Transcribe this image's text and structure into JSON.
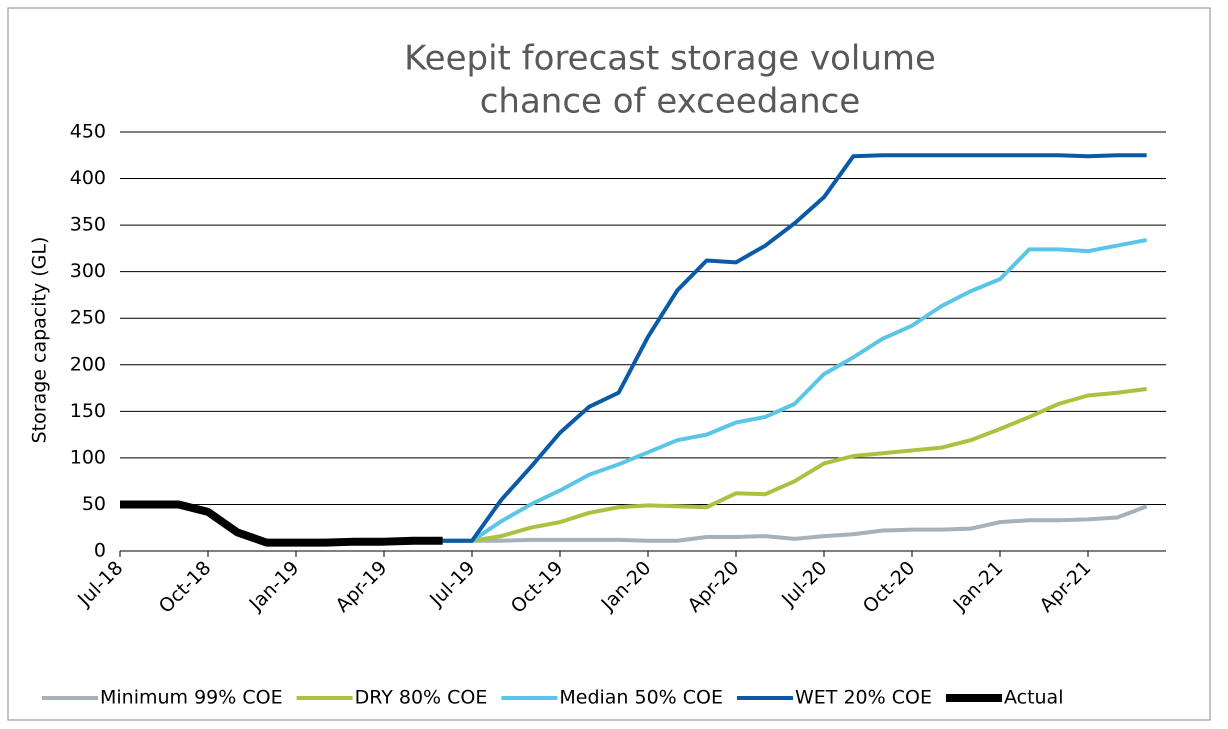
{
  "chart_data": {
    "type": "line",
    "title": [
      "Keepit forecast storage volume",
      "chance of exceedance"
    ],
    "y_label": "Storage capacity (GL)",
    "categories": [
      "Jul-18",
      null,
      null,
      "Oct-18",
      null,
      null,
      "Jan-19",
      null,
      null,
      "Apr-19",
      null,
      null,
      "Jul-19",
      null,
      null,
      "Oct-19",
      null,
      null,
      "Jan-20",
      null,
      null,
      "Apr-20",
      null,
      null,
      "Jul-20",
      null,
      null,
      "Oct-20",
      null,
      null,
      "Jan-21",
      null,
      null,
      "Apr-21",
      null,
      null
    ],
    "ylim": [
      0,
      450
    ],
    "yticks": [
      0,
      50,
      100,
      150,
      200,
      250,
      300,
      350,
      400,
      450
    ],
    "grid": true,
    "legend": "bottom",
    "series": [
      {
        "name": "Minimum 99% COE",
        "color": "#a6b1b9",
        "values": [
          null,
          null,
          null,
          null,
          null,
          null,
          null,
          null,
          null,
          null,
          null,
          11,
          11,
          11,
          12,
          12,
          12,
          12,
          11,
          11,
          15,
          15,
          16,
          13,
          16,
          18,
          22,
          23,
          23,
          24,
          31,
          33,
          33,
          34,
          36,
          48
        ]
      },
      {
        "name": "DRY 80% COE",
        "color": "#a9c23f",
        "values": [
          null,
          null,
          null,
          null,
          null,
          null,
          null,
          null,
          null,
          null,
          null,
          11,
          11,
          16,
          25,
          31,
          41,
          47,
          49,
          48,
          47,
          62,
          61,
          75,
          94,
          102,
          105,
          108,
          111,
          119,
          131,
          144,
          158,
          167,
          170,
          174
        ]
      },
      {
        "name": "Median 50% COE",
        "color": "#5bc5e8",
        "values": [
          null,
          null,
          null,
          null,
          null,
          null,
          null,
          null,
          null,
          null,
          null,
          11,
          11,
          32,
          50,
          65,
          82,
          93,
          106,
          119,
          125,
          138,
          144,
          158,
          190,
          208,
          228,
          242,
          263,
          279,
          292,
          324,
          324,
          322,
          328,
          334
        ]
      },
      {
        "name": "WET 20% COE",
        "color": "#0b5aa8",
        "values": [
          null,
          null,
          null,
          null,
          null,
          null,
          null,
          null,
          null,
          null,
          null,
          11,
          11,
          55,
          90,
          127,
          155,
          170,
          230,
          280,
          312,
          310,
          328,
          352,
          380,
          424,
          425,
          425,
          425,
          425,
          425,
          425,
          425,
          424,
          425,
          425
        ]
      },
      {
        "name": "Actual",
        "color": "#000000",
        "width": 8,
        "values": [
          50,
          50,
          50,
          42,
          20,
          9,
          9,
          9,
          10,
          10,
          11,
          11,
          null,
          null,
          null,
          null,
          null,
          null,
          null,
          null,
          null,
          null,
          null,
          null,
          null,
          null,
          null,
          null,
          null,
          null,
          null,
          null,
          null,
          null,
          null,
          null
        ]
      }
    ]
  }
}
